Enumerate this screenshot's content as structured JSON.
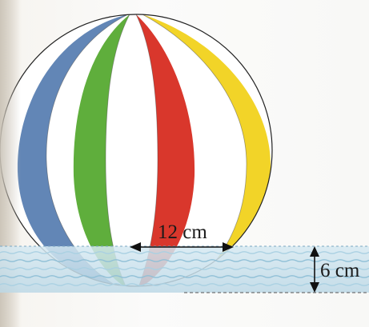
{
  "diagram": {
    "labels": {
      "chord": "12 cm",
      "depth": "6 cm"
    },
    "colors": {
      "blue": "#2e5e9e",
      "green": "#5fae3c",
      "red": "#d9372c",
      "yellow": "#f2d428",
      "water": "#cfe4ef",
      "outline": "#222222"
    }
  }
}
